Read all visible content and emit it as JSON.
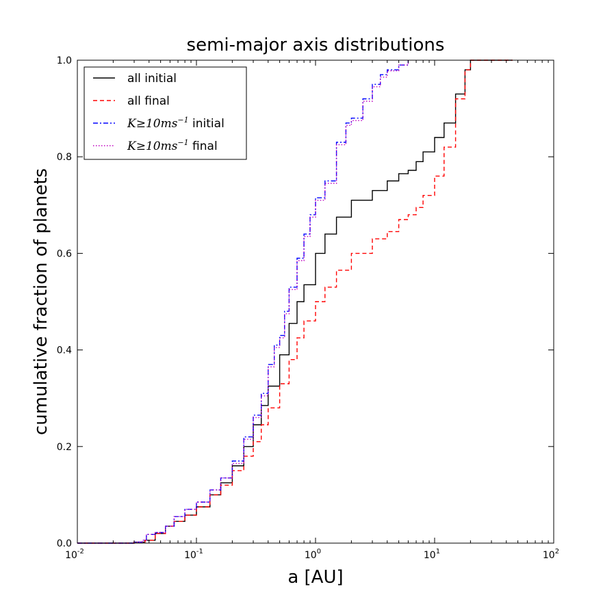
{
  "chart_data": {
    "type": "line",
    "title": "semi-major axis distributions",
    "xlabel": "a [AU]",
    "ylabel": "cumulative fraction of planets",
    "xscale": "log",
    "xlim": [
      0.01,
      100
    ],
    "ylim": [
      0.0,
      1.0
    ],
    "x_ticks": [
      {
        "base": "10",
        "exp": "-2",
        "value": 0.01
      },
      {
        "base": "10",
        "exp": "-1",
        "value": 0.1
      },
      {
        "base": "10",
        "exp": "0",
        "value": 1
      },
      {
        "base": "10",
        "exp": "1",
        "value": 10
      },
      {
        "base": "10",
        "exp": "2",
        "value": 100
      }
    ],
    "y_ticks": [
      {
        "label": "0.0",
        "value": 0.0
      },
      {
        "label": "0.2",
        "value": 0.2
      },
      {
        "label": "0.4",
        "value": 0.4
      },
      {
        "label": "0.6",
        "value": 0.6
      },
      {
        "label": "0.8",
        "value": 0.8
      },
      {
        "label": "1.0",
        "value": 1.0
      }
    ],
    "legend_position": "top-left",
    "series": [
      {
        "name": "all initial",
        "legend": {
          "math": "",
          "sup": "",
          "text": "all initial"
        },
        "color": "#000000",
        "style": "solid",
        "x": [
          0.01,
          0.02,
          0.03,
          0.037,
          0.045,
          0.055,
          0.065,
          0.08,
          0.1,
          0.13,
          0.16,
          0.2,
          0.25,
          0.3,
          0.35,
          0.4,
          0.5,
          0.6,
          0.7,
          0.8,
          1.0,
          1.2,
          1.5,
          2.0,
          3.0,
          4.0,
          5.0,
          6.0,
          7.0,
          8.0,
          10.0,
          12.0,
          15.0,
          18.0,
          20.0,
          30.0,
          45.0
        ],
        "y": [
          0.0,
          0.0,
          0.002,
          0.006,
          0.02,
          0.035,
          0.045,
          0.058,
          0.075,
          0.1,
          0.125,
          0.16,
          0.2,
          0.245,
          0.285,
          0.325,
          0.39,
          0.455,
          0.5,
          0.535,
          0.6,
          0.64,
          0.675,
          0.71,
          0.73,
          0.75,
          0.765,
          0.772,
          0.79,
          0.81,
          0.84,
          0.87,
          0.93,
          0.98,
          1.0,
          1.0,
          1.0
        ]
      },
      {
        "name": "all final",
        "legend": {
          "math": "",
          "sup": "",
          "text": "all final"
        },
        "color": "#ff0000",
        "style": "dashed",
        "x": [
          0.01,
          0.02,
          0.03,
          0.037,
          0.045,
          0.055,
          0.065,
          0.08,
          0.1,
          0.13,
          0.16,
          0.2,
          0.25,
          0.3,
          0.35,
          0.4,
          0.5,
          0.6,
          0.7,
          0.8,
          1.0,
          1.2,
          1.5,
          2.0,
          3.0,
          4.0,
          5.0,
          6.0,
          7.0,
          8.0,
          10.0,
          12.0,
          15.0,
          18.0,
          20.0,
          30.0,
          45.0
        ],
        "y": [
          0.0,
          0.0,
          0.002,
          0.006,
          0.02,
          0.035,
          0.045,
          0.058,
          0.075,
          0.1,
          0.12,
          0.15,
          0.18,
          0.21,
          0.245,
          0.28,
          0.33,
          0.38,
          0.425,
          0.46,
          0.5,
          0.53,
          0.565,
          0.6,
          0.63,
          0.645,
          0.67,
          0.68,
          0.695,
          0.72,
          0.76,
          0.82,
          0.92,
          0.98,
          1.0,
          1.0,
          1.0
        ]
      },
      {
        "name": "K≥10ms-1 initial",
        "legend": {
          "math": "K≥10ms",
          "sup": "−1",
          "text": "initial"
        },
        "color": "#0000ff",
        "style": "dashdot",
        "x": [
          0.01,
          0.02,
          0.03,
          0.035,
          0.038,
          0.045,
          0.055,
          0.065,
          0.08,
          0.1,
          0.13,
          0.16,
          0.2,
          0.25,
          0.3,
          0.35,
          0.4,
          0.45,
          0.5,
          0.55,
          0.6,
          0.7,
          0.8,
          0.9,
          1.0,
          1.2,
          1.5,
          1.8,
          2.0,
          2.5,
          3.0,
          3.5,
          4.0,
          5.0,
          6.0
        ],
        "y": [
          0.0,
          0.0,
          0.002,
          0.006,
          0.018,
          0.022,
          0.035,
          0.055,
          0.07,
          0.085,
          0.11,
          0.135,
          0.17,
          0.22,
          0.265,
          0.31,
          0.37,
          0.41,
          0.43,
          0.48,
          0.53,
          0.59,
          0.64,
          0.68,
          0.715,
          0.75,
          0.83,
          0.87,
          0.88,
          0.92,
          0.95,
          0.97,
          0.98,
          0.99,
          1.0
        ]
      },
      {
        "name": "K≥10ms-1 final",
        "legend": {
          "math": "K≥10ms",
          "sup": "−1",
          "text": "final"
        },
        "color": "#bf00bf",
        "style": "dotted",
        "x": [
          0.01,
          0.02,
          0.03,
          0.035,
          0.038,
          0.045,
          0.055,
          0.065,
          0.08,
          0.1,
          0.13,
          0.16,
          0.2,
          0.25,
          0.3,
          0.35,
          0.4,
          0.45,
          0.5,
          0.55,
          0.6,
          0.7,
          0.8,
          0.9,
          1.0,
          1.2,
          1.5,
          1.8,
          2.0,
          2.5,
          3.0,
          3.5,
          4.0,
          5.0,
          6.0
        ],
        "y": [
          0.0,
          0.0,
          0.002,
          0.006,
          0.018,
          0.022,
          0.035,
          0.055,
          0.07,
          0.085,
          0.11,
          0.135,
          0.165,
          0.215,
          0.26,
          0.305,
          0.365,
          0.405,
          0.425,
          0.475,
          0.525,
          0.585,
          0.635,
          0.675,
          0.71,
          0.745,
          0.825,
          0.865,
          0.875,
          0.915,
          0.945,
          0.965,
          0.978,
          0.99,
          1.0
        ]
      }
    ]
  }
}
